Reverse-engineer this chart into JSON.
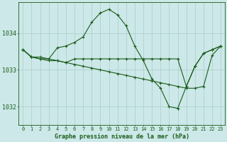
{
  "title": "Graphe pression niveau de la mer (hPa)",
  "xlabel_ticks": [
    "0",
    "1",
    "2",
    "3",
    "4",
    "5",
    "6",
    "7",
    "8",
    "9",
    "10",
    "11",
    "12",
    "13",
    "14",
    "15",
    "16",
    "17",
    "18",
    "19",
    "20",
    "21",
    "22",
    "23"
  ],
  "ylim": [
    1031.5,
    1034.85
  ],
  "yticks": [
    1032,
    1033,
    1034
  ],
  "background_color": "#cce8e8",
  "grid_color": "#aacccc",
  "line_color": "#1a5c1a",
  "line1_y": [
    1033.55,
    1033.35,
    1033.35,
    1033.3,
    1033.6,
    1033.65,
    1033.75,
    1033.9,
    1034.3,
    1034.55,
    1034.65,
    1034.5,
    1034.2,
    1033.65,
    1033.25,
    1032.75,
    1032.5,
    1032.0,
    1031.95,
    1032.55,
    1033.1,
    1033.45,
    1033.55,
    1033.65
  ],
  "line2_y": [
    1033.55,
    1033.35,
    1033.3,
    1033.25,
    1033.25,
    1033.2,
    1033.15,
    1033.1,
    1033.05,
    1033.0,
    1032.95,
    1032.9,
    1032.85,
    1032.8,
    1032.75,
    1032.7,
    1032.65,
    1032.6,
    1032.55,
    1032.5,
    1032.5,
    1032.55,
    1033.4,
    1033.65
  ],
  "line3_y": [
    1033.55,
    1033.35,
    1033.3,
    1033.3,
    1033.25,
    1033.2,
    1033.3,
    1033.3,
    1033.3,
    1033.3,
    1033.3,
    1033.3,
    1033.3,
    1033.3,
    1033.3,
    1033.3,
    1033.3,
    1033.3,
    1033.3,
    1032.55,
    1033.1,
    1033.45,
    1033.55,
    1033.65
  ],
  "marker": "+",
  "marker_size": 3,
  "linewidth": 0.8,
  "title_fontsize": 6,
  "tick_fontsize": 5,
  "ytick_fontsize": 6
}
